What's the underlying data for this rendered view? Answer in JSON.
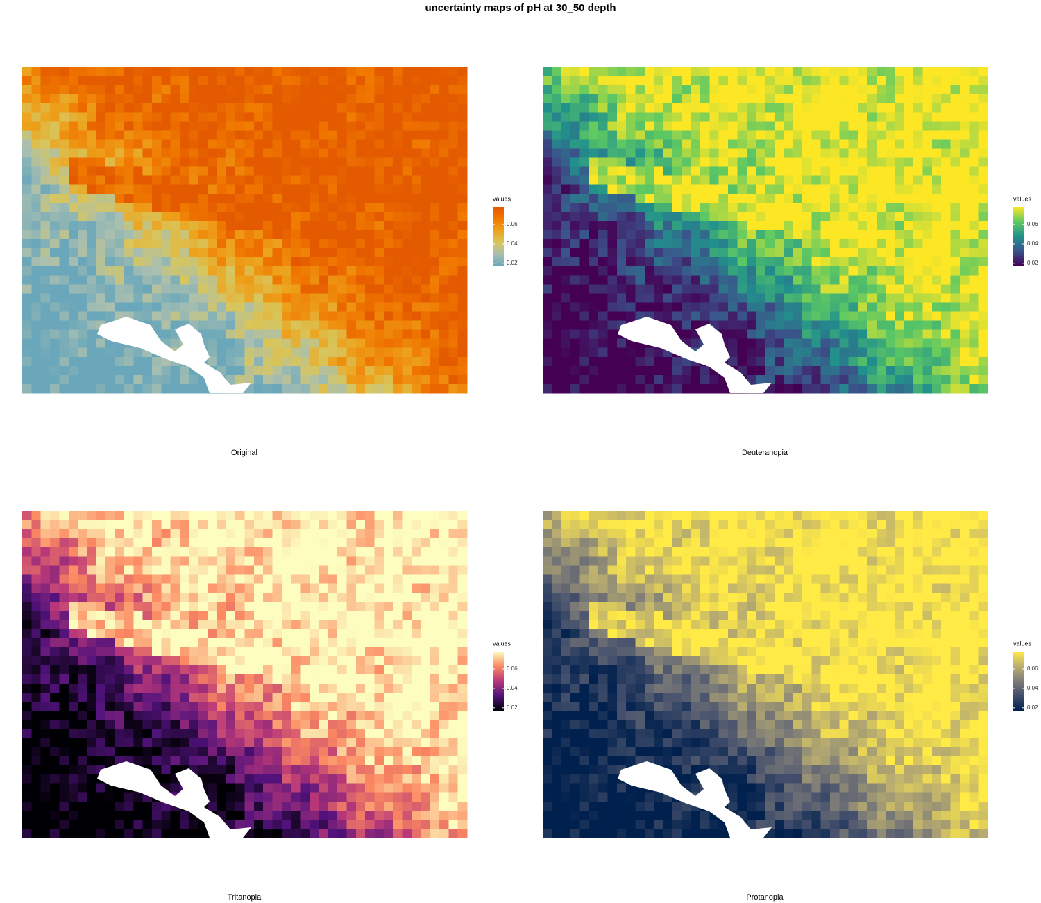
{
  "title": "uncertainty maps of pH at 30_50 depth",
  "panels": [
    {
      "caption": "Original",
      "legend": {
        "title": "values",
        "lim": [
          0.017,
          0.078
        ],
        "ticks": [
          0.02,
          0.04,
          0.06
        ],
        "colors": [
          "#6aa7bb",
          "#a9bfb0",
          "#d8c65c",
          "#eda21c",
          "#f07800",
          "#e45a00"
        ]
      }
    },
    {
      "caption": "Deuteranopia",
      "legend": {
        "title": "values",
        "lim": [
          0.017,
          0.078
        ],
        "ticks": [
          0.02,
          0.04,
          0.06
        ],
        "colors": [
          "#440154",
          "#3b528b",
          "#21918c",
          "#5ec962",
          "#fde725"
        ]
      }
    },
    {
      "caption": "Tritanopia",
      "legend": {
        "title": "values",
        "lim": [
          0.017,
          0.078
        ],
        "ticks": [
          0.02,
          0.04,
          0.06
        ],
        "colors": [
          "#000004",
          "#51127c",
          "#b73779",
          "#fc8961",
          "#fcfdbf"
        ]
      }
    },
    {
      "caption": "Protanopia",
      "legend": {
        "title": "values",
        "lim": [
          0.017,
          0.078
        ],
        "ticks": [
          0.02,
          0.04,
          0.06
        ],
        "colors": [
          "#00204d",
          "#414d6b",
          "#7c7b78",
          "#bcaf6f",
          "#ffea46"
        ]
      }
    }
  ]
}
